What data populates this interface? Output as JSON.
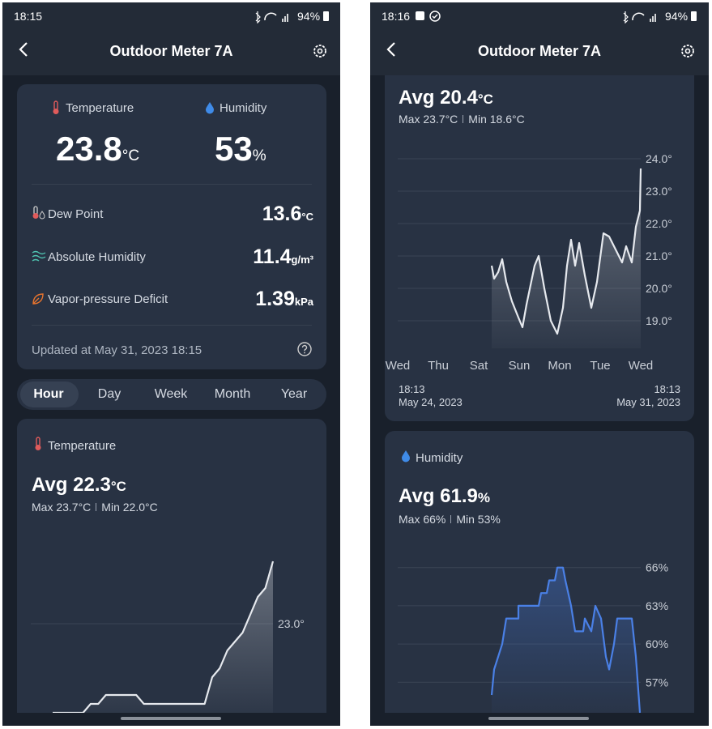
{
  "left": {
    "status": {
      "time": "18:15",
      "battery": "94%"
    },
    "header": {
      "title": "Outdoor Meter 7A"
    },
    "current": {
      "temperature": {
        "label": "Temperature",
        "value": 23.8,
        "unit": "°C"
      },
      "humidity": {
        "label": "Humidity",
        "value": 53,
        "unit": "%"
      }
    },
    "metrics": [
      {
        "label": "Dew Point",
        "value": 13.6,
        "unit": "°C"
      },
      {
        "label": "Absolute Humidity",
        "value": 11.4,
        "unit": "g/m³"
      },
      {
        "label": "Vapor-pressure Deficit",
        "value": 1.39,
        "unit": "kPa"
      }
    ],
    "updated": "Updated at May 31, 2023 18:15",
    "tabs": [
      "Hour",
      "Day",
      "Week",
      "Month",
      "Year"
    ],
    "chart": {
      "type": "line",
      "title": "Temperature",
      "avg_label": "Avg",
      "avg": 22.3,
      "unit": "°C",
      "max": "Max 23.7°C",
      "min": "Min 22.0°C",
      "color": "#e6e9ee",
      "ylim": [
        22,
        24
      ],
      "yticks": [
        {
          "value": 23,
          "label": "23.0°"
        }
      ],
      "values": [
        22.0,
        22.0,
        22.0,
        22.0,
        22.0,
        22.1,
        22.1,
        22.2,
        22.2,
        22.2,
        22.2,
        22.2,
        22.1,
        22.1,
        22.1,
        22.1,
        22.1,
        22.1,
        22.1,
        22.1,
        22.1,
        22.4,
        22.5,
        22.7,
        22.8,
        22.9,
        23.1,
        23.3,
        23.4,
        23.7
      ]
    }
  },
  "right": {
    "status": {
      "time": "18:16",
      "battery": "94%"
    },
    "header": {
      "title": "Outdoor Meter 7A"
    },
    "temperature_chart": {
      "type": "line",
      "avg_label": "Avg",
      "avg": 20.4,
      "unit": "°C",
      "max": "Max 23.7°C",
      "min": "Min 18.6°C",
      "color": "#e6e9ee",
      "ylim": [
        18.15,
        24.5
      ],
      "yticks": [
        {
          "value": 24,
          "label": "24.0°"
        },
        {
          "value": 23,
          "label": "23.0°"
        },
        {
          "value": 22,
          "label": "22.0°"
        },
        {
          "value": 21,
          "label": "21.0°"
        },
        {
          "value": 20,
          "label": "20.0°"
        },
        {
          "value": 19,
          "label": "19.0°"
        }
      ],
      "xlim": [
        0,
        6
      ],
      "xticks": [
        {
          "value": 0,
          "label": "Wed"
        },
        {
          "value": 1,
          "label": "Thu"
        },
        {
          "value": 2,
          "label": "Sat"
        },
        {
          "value": 3,
          "label": "Sun"
        },
        {
          "value": 4,
          "label": "Mon"
        },
        {
          "value": 5,
          "label": "Tue"
        },
        {
          "value": 6,
          "label": "Wed"
        }
      ],
      "range_start": {
        "time": "18:13",
        "date": "May 24, 2023"
      },
      "range_end": {
        "time": "18:13",
        "date": "May 31, 2023"
      },
      "x": [
        2.32,
        2.38,
        2.48,
        2.58,
        2.68,
        2.82,
        2.98,
        3.08,
        3.18,
        3.38,
        3.48,
        3.62,
        3.78,
        3.94,
        4.08,
        4.18,
        4.28,
        4.38,
        4.48,
        4.62,
        4.78,
        4.92,
        5.08,
        5.22,
        5.38,
        5.54,
        5.64,
        5.78,
        5.88,
        5.98,
        6.0
      ],
      "values": [
        20.7,
        20.3,
        20.5,
        20.9,
        20.2,
        19.6,
        19.1,
        18.8,
        19.5,
        20.7,
        21.0,
        20.0,
        19.0,
        18.6,
        19.4,
        20.7,
        21.5,
        20.7,
        21.4,
        20.4,
        19.4,
        20.2,
        21.7,
        21.6,
        21.2,
        20.8,
        21.3,
        20.8,
        21.9,
        22.4,
        23.7
      ]
    },
    "humidity_chart": {
      "type": "line",
      "title": "Humidity",
      "avg_label": "Avg",
      "avg": 61.9,
      "unit": "%",
      "max": "Max 66%",
      "min": "Min 53%",
      "color": "#4a80e6",
      "ylim": [
        54.6,
        67
      ],
      "yticks": [
        {
          "value": 66,
          "label": "66%"
        },
        {
          "value": 63,
          "label": "63%"
        },
        {
          "value": 60,
          "label": "60%"
        },
        {
          "value": 57,
          "label": "57%"
        }
      ],
      "xlim": [
        0,
        6
      ],
      "x": [
        2.32,
        2.38,
        2.48,
        2.58,
        2.68,
        2.98,
        2.98,
        3.48,
        3.54,
        3.68,
        3.74,
        3.88,
        3.94,
        4.08,
        4.14,
        4.28,
        4.38,
        4.58,
        4.62,
        4.78,
        4.88,
        5.02,
        5.14,
        5.22,
        5.34,
        5.42,
        5.78,
        5.88,
        5.98
      ],
      "values": [
        56,
        58,
        59,
        60,
        62,
        62,
        63,
        63,
        64,
        64,
        65,
        65,
        66,
        66,
        65,
        63,
        61,
        61,
        62,
        61,
        63,
        62,
        59,
        58,
        60,
        62,
        62,
        59,
        54.6
      ]
    }
  }
}
